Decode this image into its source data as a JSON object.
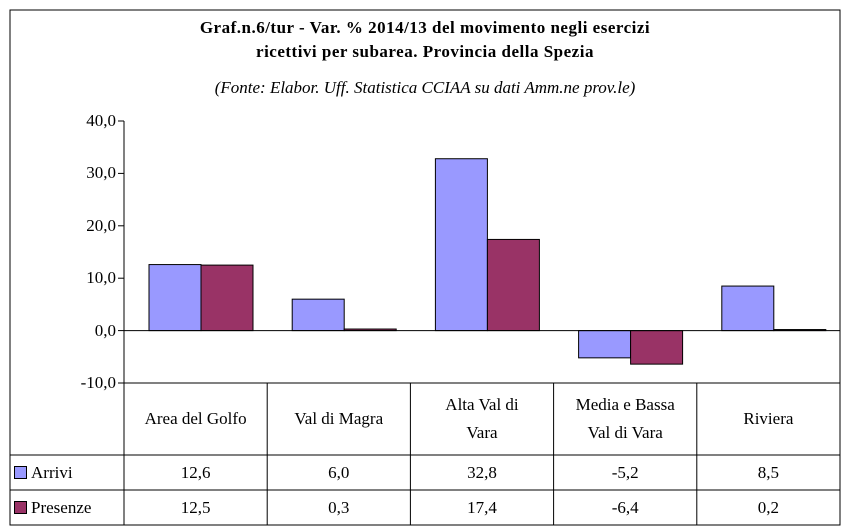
{
  "chart_data": {
    "type": "bar",
    "title": "Graf.n.6/tur - Var. % 2014/13 del movimento negli esercizi\nricettivi  per subarea. Provincia della Spezia",
    "subtitle": "(Fonte: Elabor. Uff. Statistica CCIAA su dati Amm.ne prov.le)",
    "categories": [
      "Area del Golfo",
      "Val di Magra",
      "Alta Val di\nVara",
      "Media e Bassa\nVal di Vara",
      "Riviera"
    ],
    "series": [
      {
        "name": "Arrivi",
        "color": "#9999ff",
        "values": [
          12.6,
          6.0,
          32.8,
          -5.2,
          8.5
        ],
        "value_labels": [
          "12,6",
          "6,0",
          "32,8",
          "-5,2",
          "8,5"
        ]
      },
      {
        "name": "Presenze",
        "color": "#993366",
        "values": [
          12.5,
          0.3,
          17.4,
          -6.4,
          0.2
        ],
        "value_labels": [
          "12,5",
          "0,3",
          "17,4",
          "-6,4",
          "0,2"
        ]
      }
    ],
    "ylim": [
      -10,
      40
    ],
    "yticks": [
      {
        "value": -10,
        "label": "-10,0"
      },
      {
        "value": 0,
        "label": "0,0"
      },
      {
        "value": 10,
        "label": "10,0"
      },
      {
        "value": 20,
        "label": "20,0"
      },
      {
        "value": 30,
        "label": "30,0"
      },
      {
        "value": 40,
        "label": "40,0"
      }
    ]
  }
}
